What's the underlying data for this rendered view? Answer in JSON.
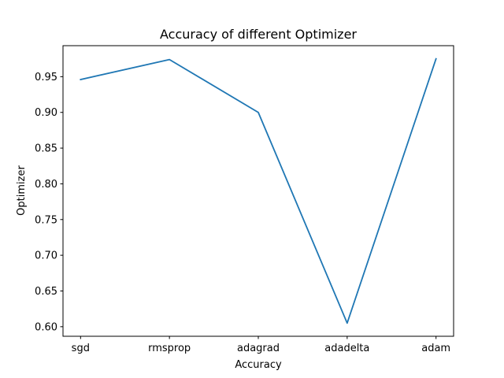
{
  "chart_data": {
    "type": "line",
    "title": "Accuracy of different Optimizer",
    "xlabel": "Accuracy",
    "ylabel": "Optimizer",
    "categories": [
      "sgd",
      "rmsprop",
      "adagrad",
      "adadelta",
      "adam"
    ],
    "series": [
      {
        "values": [
          0.946,
          0.974,
          0.9,
          0.605,
          0.975
        ],
        "color": "#1f77b4"
      }
    ],
    "ylim": [
      0.5866,
      0.9934
    ],
    "yticks": [
      0.6,
      0.65,
      0.7,
      0.75,
      0.8,
      0.85,
      0.9,
      0.95
    ],
    "ytick_labels": [
      "0.60",
      "0.65",
      "0.70",
      "0.75",
      "0.80",
      "0.85",
      "0.90",
      "0.95"
    ],
    "grid": false,
    "legend": "none"
  }
}
